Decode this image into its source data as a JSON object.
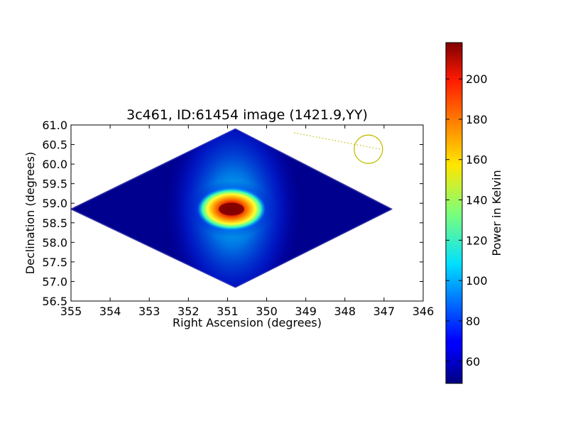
{
  "chart_data": {
    "type": "heatmap",
    "title": "3c461, ID:61454 image (1421.9,YY)",
    "xlabel": "Right Ascension (degrees)",
    "ylabel": "Declination (degrees)",
    "xlim": [
      355,
      346
    ],
    "ylim": [
      56.5,
      61.0
    ],
    "x_ticks": [
      "355",
      "354",
      "353",
      "352",
      "351",
      "350",
      "349",
      "348",
      "347",
      "346"
    ],
    "y_ticks": [
      "61.0",
      "60.5",
      "60.0",
      "59.5",
      "59.0",
      "58.5",
      "58.0",
      "57.5",
      "57.0",
      "56.5"
    ],
    "colorbar": {
      "label": "Power in Kelvin",
      "range": [
        49,
        218
      ],
      "ticks": [
        "60",
        "80",
        "100",
        "120",
        "140",
        "160",
        "180",
        "200"
      ],
      "colormap": "jet"
    },
    "footprint": {
      "shape": "diamond",
      "vertices": [
        [
          355.0,
          58.85
        ],
        [
          350.8,
          60.9
        ],
        [
          346.8,
          58.85
        ],
        [
          350.8,
          56.85
        ]
      ]
    },
    "peak": {
      "x": 350.9,
      "y": 58.85,
      "value": 218
    },
    "background_value": 52,
    "beam_marker": {
      "x": 347.4,
      "y": 60.38,
      "color": "#bfbf00"
    },
    "annotation_line": {
      "from": [
        349.3,
        60.8
      ],
      "to": [
        347.1,
        60.38
      ],
      "style": "dotted",
      "color": "#bfbf00"
    }
  }
}
